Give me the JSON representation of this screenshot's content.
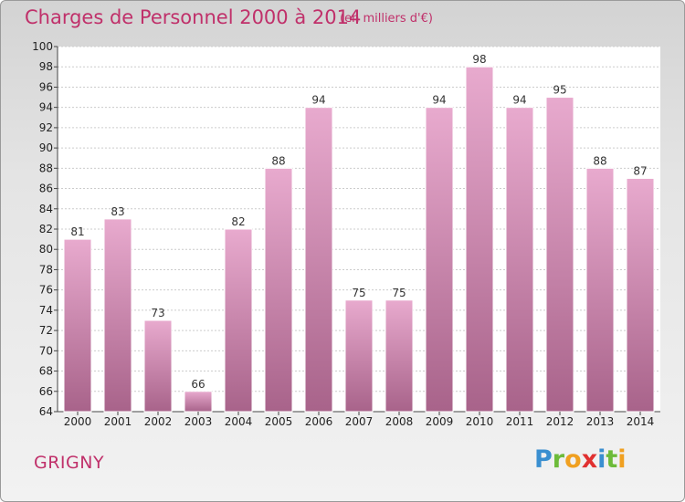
{
  "title": "Charges de Personnel 2000 à 2014",
  "subtitle": "(en milliers d'€)",
  "commune": "GRIGNY",
  "logo": "Proxiti",
  "colors": {
    "accent": "#c0306a",
    "bar_top": "#e8aace",
    "bar_bottom": "#a8638a"
  },
  "chart_data": {
    "type": "bar",
    "title": "Charges de Personnel 2000 à 2014",
    "subtitle": "(en milliers d'€)",
    "xlabel": "",
    "ylabel": "",
    "ylim": [
      64,
      100
    ],
    "yticks": [
      64,
      66,
      68,
      70,
      72,
      74,
      76,
      78,
      80,
      82,
      84,
      86,
      88,
      90,
      92,
      94,
      96,
      98,
      100
    ],
    "grid": true,
    "categories": [
      "2000",
      "2001",
      "2002",
      "2003",
      "2004",
      "2005",
      "2006",
      "2007",
      "2008",
      "2009",
      "2010",
      "2011",
      "2012",
      "2013",
      "2014"
    ],
    "values": [
      81,
      83,
      73,
      66,
      82,
      88,
      94,
      75,
      75,
      94,
      98,
      94,
      95,
      88,
      87
    ]
  }
}
